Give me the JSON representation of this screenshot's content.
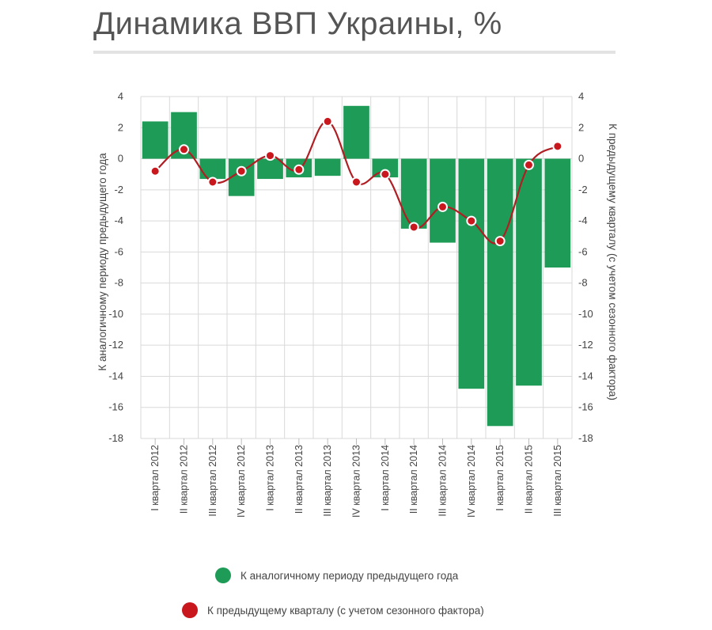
{
  "title": "Динамика ВВП Украины, %",
  "colors": {
    "bar": "#1e9b57",
    "line": "#b01e23",
    "point": "#c8171d",
    "grid": "#d9d9d9"
  },
  "chart_data": {
    "type": "bar",
    "title": "Динамика ВВП Украины, %",
    "categories": [
      "I квартал 2012",
      "II квартал 2012",
      "III квартал 2012",
      "IV квартал 2012",
      "I квартал 2013",
      "II квартал 2013",
      "III квартал 2013",
      "IV квартал 2013",
      "I квартал 2014",
      "II квартал 2014",
      "III квартал 2014",
      "IV квартал 2014",
      "I квартал 2015",
      "II квартал 2015",
      "III квартал 2015"
    ],
    "series": [
      {
        "name": "К аналогичному периоду предыдущего года",
        "type": "bar",
        "axis": "left",
        "values": [
          2.4,
          3.0,
          -1.3,
          -2.4,
          -1.3,
          -1.2,
          -1.1,
          3.4,
          -1.2,
          -4.5,
          -5.4,
          -14.8,
          -17.2,
          -14.6,
          -7.0
        ]
      },
      {
        "name": "К предыдущему кварталу (с учетом сезонного фактора)",
        "type": "line",
        "axis": "right",
        "values": [
          -0.8,
          0.6,
          -1.5,
          -0.8,
          0.2,
          -0.7,
          2.4,
          -1.5,
          -1.0,
          -4.4,
          -3.1,
          -4.0,
          -5.3,
          -0.4,
          0.8
        ]
      }
    ],
    "ylabel": "К аналогичному периоду предыдущего года",
    "y2label": "К предыдущему кварталу (с учетом сезонного фактора)",
    "ylim": [
      -18,
      4
    ],
    "yticks": [
      4,
      2,
      0,
      -2,
      -4,
      -6,
      -8,
      -10,
      -12,
      -14,
      -16,
      -18
    ],
    "ytick_labels": [
      "4",
      "2",
      "0",
      "-2",
      "-4",
      "-6",
      "-8",
      "-10",
      "-12",
      "-14",
      "-16",
      "-18"
    ],
    "grid": true,
    "legend": "bottom"
  }
}
